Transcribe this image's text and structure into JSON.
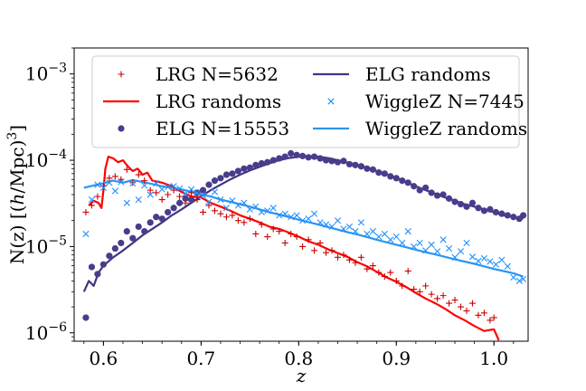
{
  "chart_data": {
    "type": "scatter",
    "title": "",
    "xlabel": "z",
    "ylabel": "N(z) [(h/Mpc)³]",
    "ylabel_parts": {
      "prefix": "N(z) [(",
      "italic": "h",
      "suffix": "/Mpc)",
      "exp": "3",
      "close": "]"
    },
    "x_ticks": [
      "0.6",
      "0.7",
      "0.8",
      "0.9",
      "1.0"
    ],
    "x_tick_values": [
      0.6,
      0.7,
      0.8,
      0.9,
      1.0
    ],
    "y_ticks": [
      {
        "value": 1e-06,
        "base": "10",
        "exp": "−6"
      },
      {
        "value": 1e-05,
        "base": "10",
        "exp": "−5"
      },
      {
        "value": 0.0001,
        "base": "10",
        "exp": "−4"
      },
      {
        "value": 0.001,
        "base": "10",
        "exp": "−3"
      }
    ],
    "xlim": [
      0.57,
      1.035
    ],
    "ylim": [
      8e-07,
      0.002
    ],
    "y_scale": "log",
    "legend_position": "top",
    "colors": {
      "lrg": "#cc0000",
      "lrg_randoms": "#ff0000",
      "elg": "#483d8b",
      "elg_randoms": "#3f3585",
      "wigglez": "#1e90ff",
      "wigglez_randoms": "#2b95f0"
    },
    "legend": [
      {
        "label": "LRG N=5632",
        "marker": "plus",
        "color": "#cc0000"
      },
      {
        "label": "LRG randoms",
        "marker": "line",
        "color": "#ff0000"
      },
      {
        "label": "ELG N=15553",
        "marker": "dot",
        "color": "#483d8b"
      },
      {
        "label": "ELG randoms",
        "marker": "line",
        "color": "#3f3585"
      },
      {
        "label": "WiggleZ N=7445",
        "marker": "x",
        "color": "#1e90ff"
      },
      {
        "label": "WiggleZ randoms",
        "marker": "line",
        "color": "#2b95f0"
      }
    ],
    "series": [
      {
        "name": "LRG N=5632",
        "kind": "scatter",
        "marker": "plus",
        "color": "#cc0000",
        "x": [
          0.582,
          0.588,
          0.594,
          0.6,
          0.606,
          0.612,
          0.618,
          0.624,
          0.63,
          0.636,
          0.642,
          0.648,
          0.654,
          0.66,
          0.666,
          0.672,
          0.678,
          0.684,
          0.69,
          0.696,
          0.702,
          0.708,
          0.714,
          0.72,
          0.726,
          0.732,
          0.738,
          0.744,
          0.75,
          0.756,
          0.762,
          0.768,
          0.774,
          0.78,
          0.786,
          0.792,
          0.798,
          0.804,
          0.81,
          0.816,
          0.822,
          0.828,
          0.834,
          0.84,
          0.846,
          0.852,
          0.858,
          0.864,
          0.87,
          0.876,
          0.882,
          0.888,
          0.894,
          0.9,
          0.906,
          0.912,
          0.918,
          0.924,
          0.93,
          0.936,
          0.942,
          0.948,
          0.954,
          0.96,
          0.966,
          0.972,
          0.978,
          0.984,
          0.99,
          0.996,
          1.0
        ],
        "y": [
          2.5e-05,
          3e-05,
          3.8e-05,
          5e-05,
          6.2e-05,
          6.5e-05,
          6e-05,
          7.8e-05,
          5.5e-05,
          6.8e-05,
          5.8e-05,
          4.5e-05,
          4.2e-05,
          3.5e-05,
          4e-05,
          4.5e-05,
          3.8e-05,
          3.2e-05,
          4.2e-05,
          3.5e-05,
          2.5e-05,
          3e-05,
          2.6e-05,
          2.4e-05,
          2.2e-05,
          2.3e-05,
          2e-05,
          1.9e-05,
          2.1e-05,
          1.4e-05,
          1.8e-05,
          1.3e-05,
          1.6e-05,
          1.5e-05,
          1.1e-05,
          1.4e-05,
          1.3e-05,
          1e-05,
          1.2e-05,
          9e-06,
          1.1e-05,
          8.5e-06,
          9e-06,
          7.5e-06,
          8e-06,
          7e-06,
          6.5e-06,
          7.5e-06,
          5.5e-06,
          6e-06,
          5e-06,
          4.5e-06,
          5e-06,
          4e-06,
          3.5e-06,
          5.2e-06,
          3.2e-06,
          3e-06,
          3.5e-06,
          2.8e-06,
          2.5e-06,
          2.7e-06,
          2.2e-06,
          2.4e-06,
          2e-06,
          1.8e-06,
          2.2e-06,
          1.6e-06,
          1.7e-06,
          1.4e-06,
          1.5e-06
        ]
      },
      {
        "name": "LRG randoms",
        "kind": "line",
        "color": "#ff0000",
        "x": [
          0.585,
          0.59,
          0.595,
          0.598,
          0.6,
          0.602,
          0.605,
          0.61,
          0.615,
          0.62,
          0.625,
          0.63,
          0.635,
          0.64,
          0.645,
          0.65,
          0.66,
          0.67,
          0.68,
          0.69,
          0.7,
          0.71,
          0.72,
          0.73,
          0.74,
          0.75,
          0.76,
          0.77,
          0.78,
          0.79,
          0.8,
          0.81,
          0.82,
          0.83,
          0.84,
          0.85,
          0.86,
          0.87,
          0.88,
          0.89,
          0.9,
          0.91,
          0.92,
          0.93,
          0.94,
          0.95,
          0.96,
          0.97,
          0.98,
          0.99,
          1.0,
          1.005
        ],
        "y": [
          3e-05,
          3.4e-05,
          3.2e-05,
          2.8e-05,
          4.5e-05,
          8e-05,
          0.00011,
          0.000105,
          9.5e-05,
          0.0001,
          8.5e-05,
          7.5e-05,
          8e-05,
          6.8e-05,
          7.2e-05,
          5.8e-05,
          5.5e-05,
          5e-05,
          4.3e-05,
          3.8e-05,
          3.7e-05,
          3.2e-05,
          2.9e-05,
          2.6e-05,
          2.3e-05,
          2.1e-05,
          1.9e-05,
          1.7e-05,
          1.6e-05,
          1.45e-05,
          1.3e-05,
          1.15e-05,
          1.05e-05,
          9.3e-06,
          8.4e-06,
          7.6e-06,
          6.6e-06,
          5.9e-06,
          5.1e-06,
          4.4e-06,
          3.9e-06,
          3.4e-06,
          2.9e-06,
          2.5e-06,
          2.2e-06,
          1.9e-06,
          1.6e-06,
          1.4e-06,
          1.2e-06,
          1.05e-06,
          1.1e-06,
          8.2e-07
        ]
      },
      {
        "name": "ELG N=15553",
        "kind": "scatter",
        "marker": "dot",
        "color": "#483d8b",
        "x": [
          0.582,
          0.588,
          0.594,
          0.6,
          0.606,
          0.612,
          0.618,
          0.624,
          0.63,
          0.636,
          0.642,
          0.648,
          0.654,
          0.66,
          0.666,
          0.672,
          0.678,
          0.684,
          0.69,
          0.696,
          0.702,
          0.708,
          0.714,
          0.72,
          0.726,
          0.732,
          0.738,
          0.744,
          0.75,
          0.756,
          0.762,
          0.768,
          0.774,
          0.78,
          0.786,
          0.792,
          0.798,
          0.804,
          0.81,
          0.816,
          0.822,
          0.828,
          0.834,
          0.84,
          0.846,
          0.852,
          0.858,
          0.864,
          0.87,
          0.876,
          0.882,
          0.888,
          0.894,
          0.9,
          0.906,
          0.912,
          0.918,
          0.924,
          0.93,
          0.936,
          0.942,
          0.948,
          0.954,
          0.96,
          0.966,
          0.972,
          0.978,
          0.984,
          0.99,
          0.996,
          1.002,
          1.008,
          1.014,
          1.02,
          1.026,
          1.03
        ],
        "y": [
          1.5e-06,
          5.8e-06,
          4.8e-06,
          6.2e-06,
          7.8e-06,
          9.5e-06,
          1.1e-05,
          1.5e-05,
          1.25e-05,
          1.7e-05,
          1.5e-05,
          1.9e-05,
          2.2e-05,
          2.1e-05,
          2.5e-05,
          2.8e-05,
          3.2e-05,
          3.6e-05,
          3.5e-05,
          4.2e-05,
          4.5e-05,
          5.2e-05,
          5.8e-05,
          6.2e-05,
          6.8e-05,
          7e-05,
          7.5e-05,
          8e-05,
          8.2e-05,
          8.8e-05,
          9.2e-05,
          9.5e-05,
          0.0001,
          0.000105,
          0.00011,
          0.00012,
          0.000115,
          0.000112,
          0.000108,
          0.00011,
          0.000105,
          0.0001,
          9.8e-05,
          9.5e-05,
          9.8e-05,
          9e-05,
          8.8e-05,
          8.5e-05,
          8e-05,
          7.8e-05,
          7.2e-05,
          7e-05,
          6.5e-05,
          6.2e-05,
          5.8e-05,
          5.5e-05,
          5e-05,
          4.5e-05,
          4.8e-05,
          4.2e-05,
          3.9e-05,
          4e-05,
          3.6e-05,
          3.3e-05,
          3.1e-05,
          2.9e-05,
          3.2e-05,
          2.8e-05,
          2.6e-05,
          2.7e-05,
          2.5e-05,
          2.4e-05,
          2.3e-05,
          2.2e-05,
          2.1e-05,
          2.3e-05
        ]
      },
      {
        "name": "ELG randoms",
        "kind": "line",
        "color": "#3f3585",
        "x": [
          0.58,
          0.585,
          0.59,
          0.595,
          0.6,
          0.61,
          0.62,
          0.63,
          0.64,
          0.65,
          0.66,
          0.67,
          0.68,
          0.69,
          0.7,
          0.71,
          0.72,
          0.73,
          0.74,
          0.75,
          0.76,
          0.77,
          0.78,
          0.79,
          0.8,
          0.81,
          0.82,
          0.83,
          0.84,
          0.85,
          0.86,
          0.87,
          0.88,
          0.89,
          0.9,
          0.91,
          0.92,
          0.93,
          0.94,
          0.95,
          0.96,
          0.97,
          0.98,
          0.99,
          1.0,
          1.01,
          1.02,
          1.03
        ],
        "y": [
          3e-06,
          4e-06,
          3.5e-06,
          5e-06,
          6e-06,
          7.5e-06,
          9e-06,
          1.1e-05,
          1.35e-05,
          1.6e-05,
          1.9e-05,
          2.3e-05,
          2.7e-05,
          3.2e-05,
          3.8e-05,
          4.5e-05,
          5.2e-05,
          6e-05,
          6.8e-05,
          7.6e-05,
          8.4e-05,
          9.2e-05,
          0.0001,
          0.000106,
          0.00011,
          0.000112,
          0.00011,
          0.000106,
          0.0001,
          9.4e-05,
          8.8e-05,
          8.2e-05,
          7.5e-05,
          6.9e-05,
          6.2e-05,
          5.6e-05,
          5e-05,
          4.5e-05,
          4.1e-05,
          3.7e-05,
          3.4e-05,
          3.1e-05,
          2.9e-05,
          2.7e-05,
          2.5e-05,
          2.3e-05,
          2.2e-05,
          2.1e-05
        ]
      },
      {
        "name": "WiggleZ N=7445",
        "kind": "scatter",
        "marker": "x",
        "color": "#1e90ff",
        "x": [
          0.582,
          0.588,
          0.594,
          0.6,
          0.606,
          0.612,
          0.618,
          0.624,
          0.63,
          0.636,
          0.642,
          0.648,
          0.654,
          0.66,
          0.666,
          0.672,
          0.678,
          0.684,
          0.69,
          0.696,
          0.702,
          0.708,
          0.714,
          0.72,
          0.726,
          0.732,
          0.738,
          0.744,
          0.75,
          0.756,
          0.762,
          0.768,
          0.774,
          0.78,
          0.786,
          0.792,
          0.798,
          0.804,
          0.81,
          0.816,
          0.822,
          0.828,
          0.834,
          0.84,
          0.846,
          0.852,
          0.858,
          0.864,
          0.87,
          0.876,
          0.882,
          0.888,
          0.894,
          0.9,
          0.906,
          0.912,
          0.918,
          0.924,
          0.93,
          0.936,
          0.942,
          0.948,
          0.954,
          0.96,
          0.966,
          0.972,
          0.978,
          0.984,
          0.99,
          0.996,
          1.002,
          1.008,
          1.014,
          1.02,
          1.026,
          1.03
        ],
        "y": [
          1.4e-05,
          3.5e-05,
          5.2e-05,
          4.8e-05,
          5.5e-05,
          4.4e-05,
          5.6e-05,
          3.2e-05,
          5.4e-05,
          3.5e-05,
          5.1e-05,
          4e-05,
          5.4e-05,
          4.6e-05,
          4.9e-05,
          5e-05,
          4.7e-05,
          4.1e-05,
          4.6e-05,
          4.2e-05,
          3.9e-05,
          3.3e-05,
          4.3e-05,
          3.5e-05,
          2.8e-05,
          3.4e-05,
          3e-05,
          3.2e-05,
          2.7e-05,
          2.9e-05,
          2.5e-05,
          2.6e-05,
          2.8e-05,
          2.3e-05,
          2.4e-05,
          2.2e-05,
          2.3e-05,
          2e-05,
          2.1e-05,
          2.4e-05,
          1.9e-05,
          1.8e-05,
          1.7e-05,
          2e-05,
          1.6e-05,
          1.7e-05,
          1.5e-05,
          1.9e-05,
          1.4e-05,
          1.5e-05,
          1.3e-05,
          1.4e-05,
          1.2e-05,
          1.3e-05,
          1.1e-05,
          1.5e-05,
          1e-05,
          1.1e-05,
          9e-06,
          1.05e-05,
          8.8e-06,
          1.2e-05,
          9.5e-06,
          7.5e-06,
          8.8e-06,
          1.1e-05,
          7.6e-06,
          6.8e-06,
          7.3e-06,
          6.7e-06,
          6.2e-06,
          7e-06,
          5.9e-06,
          4.4e-06,
          4e-06,
          4.2e-06
        ]
      },
      {
        "name": "WiggleZ randoms",
        "kind": "line",
        "color": "#2b95f0",
        "x": [
          0.58,
          0.59,
          0.6,
          0.61,
          0.62,
          0.63,
          0.64,
          0.65,
          0.66,
          0.67,
          0.68,
          0.69,
          0.7,
          0.71,
          0.72,
          0.73,
          0.74,
          0.75,
          0.76,
          0.77,
          0.78,
          0.79,
          0.8,
          0.81,
          0.82,
          0.83,
          0.84,
          0.85,
          0.86,
          0.87,
          0.88,
          0.89,
          0.9,
          0.91,
          0.92,
          0.93,
          0.94,
          0.95,
          0.96,
          0.97,
          0.98,
          0.99,
          1.0,
          1.01,
          1.02,
          1.03
        ],
        "y": [
          4.8e-05,
          5.1e-05,
          5.4e-05,
          5.8e-05,
          5.5e-05,
          5.9e-05,
          5.6e-05,
          5.3e-05,
          5e-05,
          4.8e-05,
          4.6e-05,
          4.3e-05,
          4e-05,
          3.8e-05,
          3.5e-05,
          3.3e-05,
          3.1e-05,
          2.9e-05,
          2.7e-05,
          2.5e-05,
          2.35e-05,
          2.2e-05,
          2.05e-05,
          1.92e-05,
          1.8e-05,
          1.68e-05,
          1.57e-05,
          1.47e-05,
          1.38e-05,
          1.29e-05,
          1.2e-05,
          1.12e-05,
          1.05e-05,
          9.8e-06,
          9.2e-06,
          8.6e-06,
          8.1e-06,
          7.6e-06,
          7.1e-06,
          6.7e-06,
          6.3e-06,
          5.9e-06,
          5.5e-06,
          5.2e-06,
          4.9e-06,
          4.5e-06
        ]
      }
    ]
  }
}
